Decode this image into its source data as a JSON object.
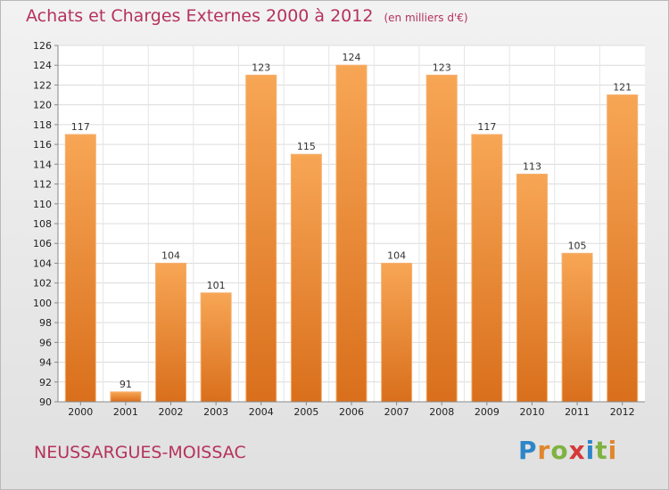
{
  "chart_data": {
    "type": "bar",
    "title": "Achats et Charges Externes 2000 à 2012",
    "subtitle": "(en milliers d'€)",
    "categories": [
      "2000",
      "2001",
      "2002",
      "2003",
      "2004",
      "2005",
      "2006",
      "2007",
      "2008",
      "2009",
      "2010",
      "2011",
      "2012"
    ],
    "values": [
      117,
      91,
      104,
      101,
      123,
      115,
      124,
      104,
      123,
      117,
      113,
      105,
      121
    ],
    "ylim": [
      90,
      126
    ],
    "yticks": [
      90,
      92,
      94,
      96,
      98,
      100,
      102,
      104,
      106,
      108,
      110,
      112,
      114,
      116,
      118,
      120,
      122,
      124,
      126
    ],
    "grid": true,
    "colors": {
      "bar_top": "#f7a655",
      "bar_bottom": "#d96f1c",
      "title": "#b5325c"
    }
  },
  "location": "NEUSSARGUES-MOISSAC",
  "logo": {
    "text": "Proxiti",
    "letters": [
      "P",
      "r",
      "o",
      "x",
      "i",
      "t",
      "i"
    ],
    "colors": [
      "#2d86c8",
      "#e0862c",
      "#7fb241",
      "#d43a3a",
      "#2d86c8",
      "#7fb241",
      "#e0862c"
    ]
  }
}
